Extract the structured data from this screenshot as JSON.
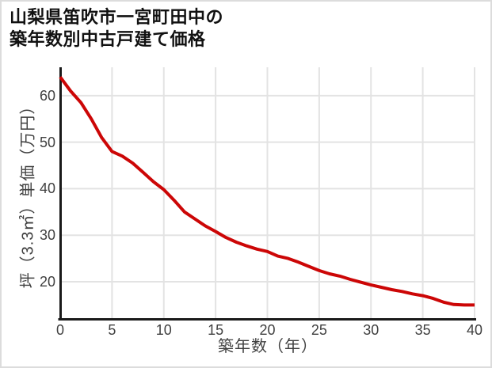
{
  "title": {
    "line1": "山梨県笛吹市一宮町田中の",
    "line2": "築年数別中古戸建て価格"
  },
  "chart_data": {
    "type": "line",
    "title": "山梨県笛吹市一宮町田中の築年数別中古戸建て価格",
    "xlabel": "築年数（年）",
    "ylabel": "坪（3.3㎡）単価（万円）",
    "x": [
      0,
      1,
      2,
      3,
      4,
      5,
      6,
      7,
      8,
      9,
      10,
      11,
      12,
      13,
      14,
      15,
      16,
      17,
      18,
      19,
      20,
      21,
      22,
      23,
      24,
      25,
      26,
      27,
      28,
      29,
      30,
      31,
      32,
      33,
      34,
      35,
      36,
      37,
      38,
      39,
      40
    ],
    "values": [
      64,
      61,
      58.5,
      55,
      51,
      48,
      47,
      45.5,
      43.5,
      41.5,
      39.8,
      37.5,
      35,
      33.5,
      32,
      30.8,
      29.5,
      28.5,
      27.7,
      27,
      26.5,
      25.5,
      25,
      24.2,
      23.3,
      22.4,
      21.7,
      21.2,
      20.5,
      19.9,
      19.3,
      18.8,
      18.3,
      17.9,
      17.4,
      17,
      16.4,
      15.6,
      15.1,
      15,
      15
    ],
    "x_ticks": [
      0,
      5,
      10,
      15,
      20,
      25,
      30,
      35,
      40
    ],
    "y_ticks": [
      20,
      30,
      40,
      50,
      60
    ],
    "xlim": [
      0,
      40
    ],
    "ylim": [
      12,
      66.1
    ],
    "grid": true,
    "legend_visible": false,
    "line_color": "#cc0606",
    "grid_color": "#e3e3e3",
    "axis_color": "#1a1a1a",
    "tick_color": "#404040"
  }
}
